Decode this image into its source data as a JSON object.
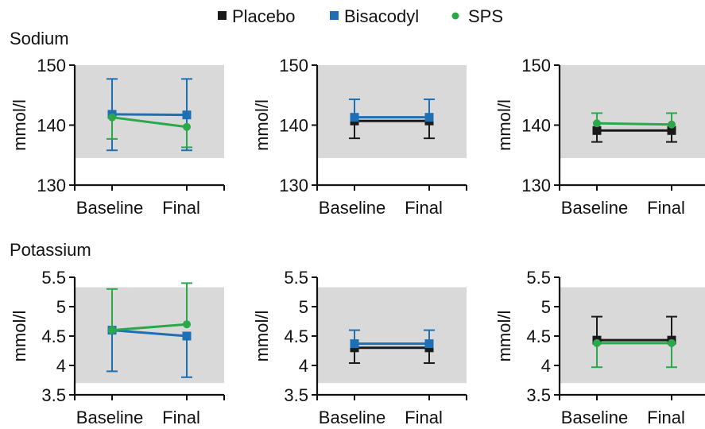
{
  "legend": [
    {
      "label": "Placebo",
      "color": "#1a1a1a",
      "marker": "square"
    },
    {
      "label": "Bisacodyl",
      "color": "#1f6fb5",
      "marker": "square"
    },
    {
      "label": "SPS",
      "color": "#2aa84a",
      "marker": "circle"
    }
  ],
  "group_labels": [
    "Sodium",
    "Potassium"
  ],
  "colors": {
    "band": "#d9d9d9",
    "axis": "#111111"
  },
  "chart_data": [
    {
      "type": "line",
      "group": "Sodium",
      "ylabel": "mmol/l",
      "categories": [
        "Baseline",
        "Final"
      ],
      "ylim": [
        130,
        150
      ],
      "yticks": [
        130,
        140,
        150
      ],
      "yticklabels": [
        "130",
        "140",
        "150"
      ],
      "band": [
        134.5,
        150
      ],
      "series": [
        {
          "name": "Bisacodyl",
          "color": "#1f6fb5",
          "marker": "square",
          "values": [
            141.8,
            141.7
          ],
          "err_low": [
            135.8,
            135.8
          ],
          "err_high": [
            147.7,
            147.7
          ]
        },
        {
          "name": "SPS",
          "color": "#2aa84a",
          "marker": "circle",
          "values": [
            141.3,
            139.7
          ],
          "err_low": [
            137.7,
            136.3
          ],
          "err_high": [
            141.3,
            139.7
          ]
        }
      ]
    },
    {
      "type": "line",
      "group": "Sodium",
      "ylabel": "mmol/l",
      "categories": [
        "Baseline",
        "Final"
      ],
      "ylim": [
        130,
        150
      ],
      "yticks": [
        130,
        140,
        150
      ],
      "yticklabels": [
        "130",
        "140",
        "150"
      ],
      "band": [
        134.5,
        150
      ],
      "series": [
        {
          "name": "Placebo",
          "color": "#1a1a1a",
          "marker": "square",
          "values": [
            140.7,
            140.7
          ],
          "err_low": [
            137.8,
            137.8
          ],
          "err_high": [
            140.7,
            140.7
          ]
        },
        {
          "name": "Bisacodyl",
          "color": "#1f6fb5",
          "marker": "square",
          "values": [
            141.3,
            141.3
          ],
          "err_low": [
            141.3,
            141.3
          ],
          "err_high": [
            144.3,
            144.3
          ]
        }
      ]
    },
    {
      "type": "line",
      "group": "Sodium",
      "ylabel": "mmol/l",
      "categories": [
        "Baseline",
        "Final"
      ],
      "ylim": [
        130,
        150
      ],
      "yticks": [
        130,
        140,
        150
      ],
      "yticklabels": [
        "130",
        "140",
        "150"
      ],
      "band": [
        134.5,
        150
      ],
      "series": [
        {
          "name": "Placebo",
          "color": "#1a1a1a",
          "marker": "square",
          "values": [
            139.1,
            139.1
          ],
          "err_low": [
            137.2,
            137.2
          ],
          "err_high": [
            139.1,
            139.1
          ]
        },
        {
          "name": "SPS",
          "color": "#2aa84a",
          "marker": "circle",
          "values": [
            140.3,
            140.1
          ],
          "err_low": [
            140.3,
            140.1
          ],
          "err_high": [
            142.0,
            142.0
          ]
        }
      ]
    },
    {
      "type": "line",
      "group": "Potassium",
      "ylabel": "mmol/l",
      "categories": [
        "Baseline",
        "Final"
      ],
      "ylim": [
        3.5,
        5.5
      ],
      "yticks": [
        3.5,
        4,
        4.5,
        5,
        5.5
      ],
      "yticklabels": [
        "3.5",
        "4",
        "4.5",
        "5",
        "5.5"
      ],
      "band": [
        3.7,
        5.33
      ],
      "series": [
        {
          "name": "Bisacodyl",
          "color": "#1f6fb5",
          "marker": "square",
          "values": [
            4.6,
            4.5
          ],
          "err_low": [
            3.9,
            3.8
          ],
          "err_high": [
            4.6,
            4.5
          ]
        },
        {
          "name": "SPS",
          "color": "#2aa84a",
          "marker": "circle",
          "values": [
            4.6,
            4.7
          ],
          "err_low": [
            4.6,
            4.7
          ],
          "err_high": [
            5.3,
            5.4
          ]
        }
      ]
    },
    {
      "type": "line",
      "group": "Potassium",
      "ylabel": "mmol/l",
      "categories": [
        "Baseline",
        "Final"
      ],
      "ylim": [
        3.5,
        5.5
      ],
      "yticks": [
        3.5,
        4,
        4.5,
        5,
        5.5
      ],
      "yticklabels": [
        "3.5",
        "4",
        "4.5",
        "5",
        "5.5"
      ],
      "band": [
        3.7,
        5.33
      ],
      "series": [
        {
          "name": "Placebo",
          "color": "#1a1a1a",
          "marker": "square",
          "values": [
            4.3,
            4.3
          ],
          "err_low": [
            4.04,
            4.04
          ],
          "err_high": [
            4.3,
            4.3
          ]
        },
        {
          "name": "Bisacodyl",
          "color": "#1f6fb5",
          "marker": "square",
          "values": [
            4.37,
            4.37
          ],
          "err_low": [
            4.37,
            4.37
          ],
          "err_high": [
            4.6,
            4.6
          ]
        }
      ]
    },
    {
      "type": "line",
      "group": "Potassium",
      "ylabel": "mmol/l",
      "categories": [
        "Baseline",
        "Final"
      ],
      "ylim": [
        3.5,
        5.5
      ],
      "yticks": [
        3.5,
        4,
        4.5,
        5,
        5.5
      ],
      "yticklabels": [
        "3.5",
        "4",
        "4.5",
        "5",
        "5.5"
      ],
      "band": [
        3.7,
        5.33
      ],
      "series": [
        {
          "name": "Placebo",
          "color": "#1a1a1a",
          "marker": "square",
          "values": [
            4.43,
            4.43
          ],
          "err_low": [
            4.43,
            4.43
          ],
          "err_high": [
            4.83,
            4.83
          ]
        },
        {
          "name": "SPS",
          "color": "#2aa84a",
          "marker": "circle",
          "values": [
            4.38,
            4.38
          ],
          "err_low": [
            3.97,
            3.97
          ],
          "err_high": [
            4.38,
            4.38
          ]
        }
      ]
    }
  ]
}
